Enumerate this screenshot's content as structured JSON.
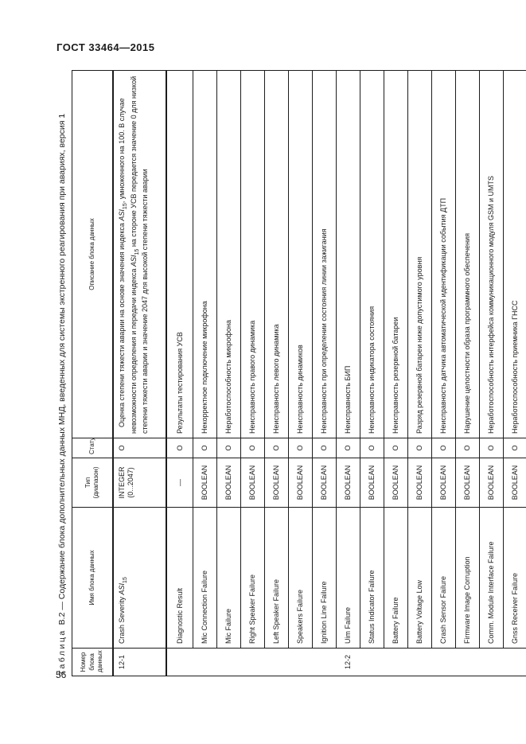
{
  "page": {
    "doc_header": "ГОСТ 33464—2015",
    "page_number": "56"
  },
  "table": {
    "title_word": "Таблица",
    "title_rest": "В.2 — Содержание блока дополнительных данных МНД, введенных для системы экстренного реагирования при авариях, версия 1",
    "columns": [
      "Номер блока данных",
      "Имя блока данных",
      "Тип (диапазон)",
      "Статус",
      "Описание блока данных"
    ],
    "row_12_1": {
      "num": "12-1",
      "name_prefix": "Crash Severity ",
      "name_var": "ASI",
      "name_sub": "15",
      "type_line1": "INTEGER",
      "type_line2": "(0...2047)",
      "status": "О",
      "desc_p1": "Оценка степени тяжести аварии на основе значения индекса ",
      "desc_var1": "ASI",
      "desc_sub1": "15",
      "desc_p2": ", умноженного на 100. В случае невозможности определения и передачи индекса ",
      "desc_var2": "ASI",
      "desc_sub2": "15",
      "desc_p3": " на стороне УСВ передается значение 0 для низкой степени тяжести аварии и значение 2047 для высокой степени тяжести аварии"
    },
    "row_12_2_num": "12-2",
    "sub_rows": [
      {
        "name": "Diagnostic Result",
        "type": "—",
        "status": "О",
        "desc": "Результаты тестирования УСВ"
      },
      {
        "name": "Mic Connection Failure",
        "type": "BOOLEAN",
        "status": "О",
        "desc": "Некорректное подключение микрофона"
      },
      {
        "name": "Mic Failure",
        "type": "BOOLEAN",
        "status": "О",
        "desc": "Неработоспособность микрофона"
      },
      {
        "name": "Right Speaker Failure",
        "type": "BOOLEAN",
        "status": "О",
        "desc": "Неисправность правого динамика"
      },
      {
        "name": "Left Speaker Failure",
        "type": "BOOLEAN",
        "status": "О",
        "desc": "Неисправность левого динамика"
      },
      {
        "name": "Speakers Failure",
        "type": "BOOLEAN",
        "status": "О",
        "desc": "Неисправность динамиков"
      },
      {
        "name": "Ignition Line Failure",
        "type": "BOOLEAN",
        "status": "О",
        "desc": "Неисправность при определении состояния линии зажигания"
      },
      {
        "name": "Uim Failure",
        "type": "BOOLEAN",
        "status": "О",
        "desc": "Неисправность БИП"
      },
      {
        "name": "Status Indicator Failure",
        "type": "BOOLEAN",
        "status": "О",
        "desc": "Неисправность индикатора состояния"
      },
      {
        "name": "Battery Failure",
        "type": "BOOLEAN",
        "status": "О",
        "desc": "Неисправность резервной батареи"
      },
      {
        "name": "Battery Voltage Low",
        "type": "BOOLEAN",
        "status": "О",
        "desc": "Разряд резервной батареи ниже допустимого уровня"
      },
      {
        "name": "Crash Sensor Failure",
        "type": "BOOLEAN",
        "status": "О",
        "desc": "Неисправность датчика автоматической идентификации события ДТП"
      },
      {
        "name": "Firmware Image Corruption",
        "type": "BOOLEAN",
        "status": "О",
        "desc": "Нарушение целостности образа программного обеспечения"
      },
      {
        "name": "Comm. Module Interface Failure",
        "type": "BOOLEAN",
        "status": "О",
        "desc": "Неработоспособность интерфейса коммуникационного модуля GSM и UMTS"
      },
      {
        "name": "Gnss Receiver Failure",
        "type": "BOOLEAN",
        "status": "О",
        "desc": "Неработоспособность приемника ГНСС"
      }
    ]
  }
}
